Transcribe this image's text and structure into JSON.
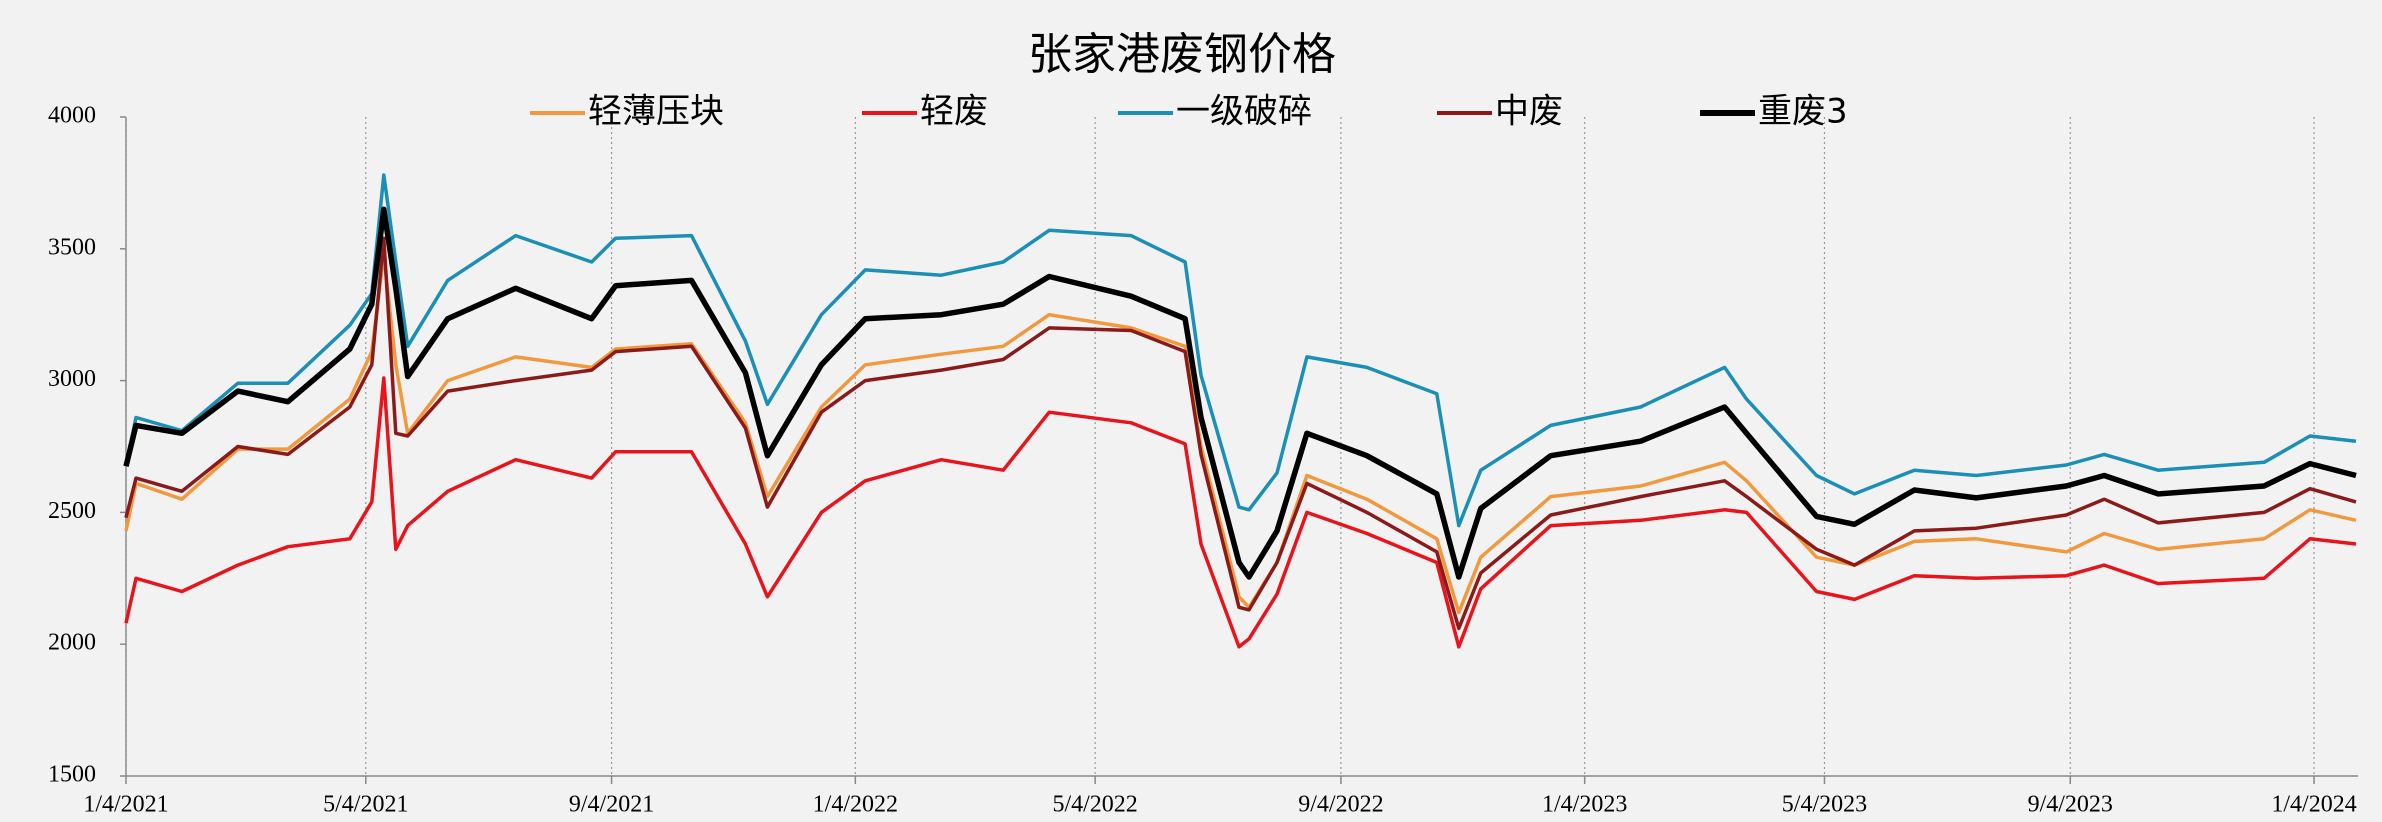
{
  "chart_data": {
    "type": "line",
    "title": "张家港废钢价格",
    "x": [
      "2021-01-04",
      "2021-01-09",
      "2021-02-01",
      "2021-03-01",
      "2021-03-26",
      "2021-04-26",
      "2021-05-07",
      "2021-05-13",
      "2021-05-19",
      "2021-05-25",
      "2021-06-14",
      "2021-07-18",
      "2021-08-25",
      "2021-09-06",
      "2021-10-14",
      "2021-11-10",
      "2021-11-21",
      "2021-12-18",
      "2022-01-09",
      "2022-02-16",
      "2022-03-19",
      "2022-04-11",
      "2022-05-22",
      "2022-06-18",
      "2022-06-26",
      "2022-07-15",
      "2022-07-20",
      "2022-08-03",
      "2022-08-18",
      "2022-09-17",
      "2022-10-22",
      "2022-11-02",
      "2022-11-13",
      "2022-12-18",
      "2023-02-01",
      "2023-03-15",
      "2023-03-26",
      "2023-04-30",
      "2023-05-19",
      "2023-06-18",
      "2023-07-19",
      "2023-09-02",
      "2023-09-21",
      "2023-10-18",
      "2023-12-10",
      "2024-01-02",
      "2024-01-25"
    ],
    "series": [
      {
        "name": "轻薄压块",
        "color": "#f0993e",
        "values": [
          2430,
          2610,
          2550,
          2740,
          2740,
          2930,
          3110,
          3480,
          3060,
          2800,
          3000,
          3090,
          3050,
          3120,
          3140,
          2840,
          2560,
          2900,
          3060,
          3100,
          3130,
          3250,
          3200,
          3130,
          2750,
          2180,
          2140,
          2310,
          2640,
          2550,
          2400,
          2120,
          2330,
          2560,
          2600,
          2690,
          2620,
          2330,
          2300,
          2390,
          2400,
          2350,
          2420,
          2360,
          2400,
          2510,
          2470
        ]
      },
      {
        "name": "轻废",
        "color": "#e8141b",
        "values": [
          2080,
          2250,
          2200,
          2300,
          2370,
          2400,
          2540,
          3010,
          2360,
          2450,
          2580,
          2700,
          2630,
          2730,
          2730,
          2380,
          2180,
          2500,
          2620,
          2700,
          2660,
          2880,
          2840,
          2760,
          2380,
          1990,
          2020,
          2190,
          2500,
          2420,
          2310,
          1990,
          2210,
          2450,
          2470,
          2510,
          2500,
          2200,
          2170,
          2260,
          2250,
          2260,
          2300,
          2230,
          2250,
          2400,
          2380
        ]
      },
      {
        "name": "一级破碎",
        "color": "#1b8fb5",
        "values": [
          2680,
          2860,
          2810,
          2990,
          2990,
          3210,
          3330,
          3780,
          3450,
          3130,
          3380,
          3550,
          3450,
          3540,
          3550,
          3150,
          2910,
          3250,
          3420,
          3400,
          3450,
          3570,
          3550,
          3450,
          3020,
          2520,
          2510,
          2650,
          3090,
          3050,
          2950,
          2450,
          2660,
          2830,
          2900,
          3050,
          2930,
          2640,
          2570,
          2660,
          2640,
          2680,
          2720,
          2660,
          2690,
          2790,
          2770
        ]
      },
      {
        "name": "中废",
        "color": "#8b1a1a",
        "values": [
          2480,
          2630,
          2580,
          2750,
          2720,
          2900,
          3060,
          3540,
          2800,
          2790,
          2960,
          3000,
          3040,
          3110,
          3130,
          2820,
          2520,
          2880,
          3000,
          3040,
          3080,
          3200,
          3190,
          3110,
          2720,
          2140,
          2130,
          2310,
          2610,
          2500,
          2350,
          2060,
          2270,
          2490,
          2560,
          2620,
          2560,
          2360,
          2300,
          2430,
          2440,
          2490,
          2550,
          2460,
          2500,
          2590,
          2540
        ]
      },
      {
        "name": "重废3",
        "color": "#000000",
        "values": [
          2675,
          2830,
          2800,
          2960,
          2920,
          3120,
          3290,
          3650,
          3350,
          3015,
          3235,
          3350,
          3235,
          3360,
          3380,
          3030,
          2715,
          3060,
          3235,
          3250,
          3290,
          3395,
          3320,
          3235,
          2860,
          2310,
          2255,
          2430,
          2800,
          2715,
          2570,
          2255,
          2515,
          2715,
          2770,
          2900,
          2800,
          2485,
          2455,
          2585,
          2555,
          2600,
          2640,
          2570,
          2600,
          2685,
          2640
        ]
      }
    ],
    "xlim": [
      "2021-01-04",
      "2024-01-26"
    ],
    "xticks": [
      {
        "value": "2021-01-04",
        "label": "1/4/2021"
      },
      {
        "value": "2021-05-04",
        "label": "5/4/2021"
      },
      {
        "value": "2021-09-04",
        "label": "9/4/2021"
      },
      {
        "value": "2022-01-04",
        "label": "1/4/2022"
      },
      {
        "value": "2022-05-04",
        "label": "5/4/2022"
      },
      {
        "value": "2022-09-04",
        "label": "9/4/2022"
      },
      {
        "value": "2023-01-04",
        "label": "1/4/2023"
      },
      {
        "value": "2023-05-04",
        "label": "5/4/2023"
      },
      {
        "value": "2023-09-04",
        "label": "9/4/2023"
      },
      {
        "value": "2024-01-04",
        "label": "1/4/2024"
      }
    ],
    "ylim": [
      1500,
      4000
    ],
    "yticks": [
      1500,
      2000,
      2500,
      3000,
      3500,
      4000
    ],
    "grid": "x",
    "legend": "top"
  }
}
